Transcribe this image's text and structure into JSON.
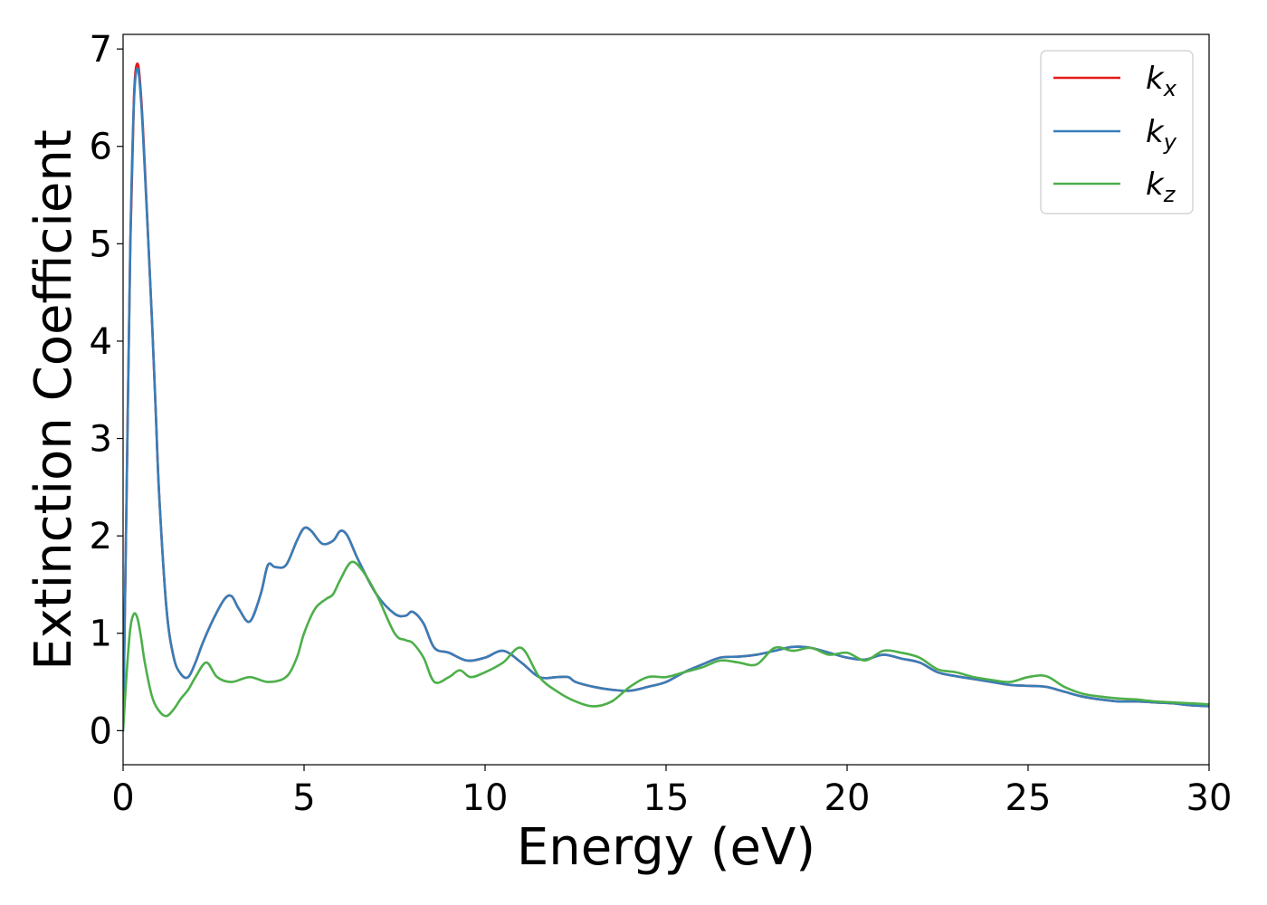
{
  "chart_data": {
    "type": "line",
    "xlabel": "Energy (eV)",
    "ylabel": "Extinction Coefficient",
    "xlim": [
      0,
      30
    ],
    "ylim": [
      -0.35,
      7.15
    ],
    "xticks": [
      0,
      5,
      10,
      15,
      20,
      25,
      30
    ],
    "xtick_labels": [
      "0",
      "5",
      "10",
      "15",
      "20",
      "25",
      "30"
    ],
    "yticks": [
      0,
      1,
      2,
      3,
      4,
      5,
      6,
      7
    ],
    "ytick_labels": [
      "0",
      "1",
      "2",
      "3",
      "4",
      "5",
      "6",
      "7"
    ],
    "grid": false,
    "legend_position": "top-right",
    "series": [
      {
        "name": "k",
        "subscript": "x",
        "color": "#e41a1c",
        "x": [
          0,
          0.1,
          0.2,
          0.3,
          0.4,
          0.5,
          0.6,
          0.7,
          0.8,
          0.9,
          1.0,
          1.2,
          1.4,
          1.6,
          1.8,
          2.0,
          2.2,
          2.5,
          2.8,
          3.0,
          3.2,
          3.5,
          3.8,
          4.0,
          4.2,
          4.5,
          4.8,
          5.0,
          5.2,
          5.5,
          5.8,
          6.0,
          6.2,
          6.5,
          7.0,
          7.5,
          7.8,
          8.0,
          8.3,
          8.6,
          9.0,
          9.5,
          10.0,
          10.5,
          11.0,
          11.5,
          12.0,
          12.3,
          12.5,
          13.0,
          13.5,
          14.0,
          14.5,
          15.0,
          15.5,
          16.0,
          16.5,
          17.0,
          17.5,
          18.0,
          18.5,
          19.0,
          19.5,
          20.0,
          20.5,
          21.0,
          21.5,
          22.0,
          22.5,
          23.0,
          23.5,
          24.0,
          24.5,
          25.0,
          25.5,
          26.0,
          26.5,
          27.0,
          27.5,
          28.0,
          28.5,
          29.0,
          29.5,
          30.0
        ],
        "values": [
          0.0,
          2.5,
          5.0,
          6.5,
          6.85,
          6.5,
          5.8,
          5.0,
          4.2,
          3.3,
          2.4,
          1.25,
          0.75,
          0.58,
          0.55,
          0.7,
          0.9,
          1.15,
          1.35,
          1.38,
          1.25,
          1.12,
          1.4,
          1.7,
          1.68,
          1.7,
          1.95,
          2.08,
          2.05,
          1.92,
          1.95,
          2.05,
          2.0,
          1.75,
          1.4,
          1.2,
          1.18,
          1.22,
          1.1,
          0.85,
          0.8,
          0.72,
          0.75,
          0.82,
          0.7,
          0.55,
          0.55,
          0.55,
          0.5,
          0.45,
          0.42,
          0.41,
          0.45,
          0.5,
          0.6,
          0.68,
          0.75,
          0.76,
          0.78,
          0.82,
          0.86,
          0.85,
          0.8,
          0.75,
          0.73,
          0.78,
          0.74,
          0.7,
          0.6,
          0.56,
          0.53,
          0.5,
          0.47,
          0.46,
          0.45,
          0.4,
          0.35,
          0.32,
          0.3,
          0.3,
          0.29,
          0.28,
          0.26,
          0.25
        ]
      },
      {
        "name": "k",
        "subscript": "y",
        "color": "#377eb8",
        "x": [
          0,
          0.1,
          0.2,
          0.3,
          0.4,
          0.5,
          0.6,
          0.7,
          0.8,
          0.9,
          1.0,
          1.2,
          1.4,
          1.6,
          1.8,
          2.0,
          2.2,
          2.5,
          2.8,
          3.0,
          3.2,
          3.5,
          3.8,
          4.0,
          4.2,
          4.5,
          4.8,
          5.0,
          5.2,
          5.5,
          5.8,
          6.0,
          6.2,
          6.5,
          7.0,
          7.5,
          7.8,
          8.0,
          8.3,
          8.6,
          9.0,
          9.5,
          10.0,
          10.5,
          11.0,
          11.5,
          12.0,
          12.3,
          12.5,
          13.0,
          13.5,
          14.0,
          14.5,
          15.0,
          15.5,
          16.0,
          16.5,
          17.0,
          17.5,
          18.0,
          18.5,
          19.0,
          19.5,
          20.0,
          20.5,
          21.0,
          21.5,
          22.0,
          22.5,
          23.0,
          23.5,
          24.0,
          24.5,
          25.0,
          25.5,
          26.0,
          26.5,
          27.0,
          27.5,
          28.0,
          28.5,
          29.0,
          29.5,
          30.0
        ],
        "values": [
          0.0,
          2.5,
          5.0,
          6.45,
          6.8,
          6.45,
          5.75,
          5.0,
          4.2,
          3.3,
          2.4,
          1.25,
          0.75,
          0.58,
          0.55,
          0.7,
          0.9,
          1.15,
          1.35,
          1.38,
          1.25,
          1.12,
          1.4,
          1.7,
          1.68,
          1.7,
          1.95,
          2.08,
          2.05,
          1.92,
          1.95,
          2.05,
          2.0,
          1.75,
          1.4,
          1.2,
          1.18,
          1.22,
          1.1,
          0.85,
          0.8,
          0.72,
          0.75,
          0.82,
          0.7,
          0.55,
          0.55,
          0.55,
          0.5,
          0.45,
          0.42,
          0.41,
          0.45,
          0.5,
          0.6,
          0.68,
          0.75,
          0.76,
          0.78,
          0.82,
          0.86,
          0.85,
          0.8,
          0.75,
          0.73,
          0.78,
          0.74,
          0.7,
          0.6,
          0.56,
          0.53,
          0.5,
          0.47,
          0.46,
          0.45,
          0.4,
          0.35,
          0.32,
          0.3,
          0.3,
          0.29,
          0.28,
          0.26,
          0.25
        ]
      },
      {
        "name": "k",
        "subscript": "z",
        "color": "#4daf4a",
        "x": [
          0,
          0.1,
          0.2,
          0.3,
          0.4,
          0.5,
          0.6,
          0.8,
          1.0,
          1.2,
          1.4,
          1.6,
          1.8,
          2.0,
          2.3,
          2.6,
          3.0,
          3.5,
          4.0,
          4.5,
          4.8,
          5.0,
          5.3,
          5.6,
          5.8,
          6.0,
          6.3,
          6.6,
          7.0,
          7.5,
          7.8,
          8.0,
          8.3,
          8.6,
          9.0,
          9.3,
          9.6,
          10.0,
          10.5,
          11.0,
          11.5,
          12.0,
          12.5,
          13.0,
          13.5,
          14.0,
          14.5,
          15.0,
          15.5,
          16.0,
          16.5,
          17.0,
          17.5,
          18.0,
          18.5,
          19.0,
          19.5,
          20.0,
          20.5,
          21.0,
          21.5,
          22.0,
          22.5,
          23.0,
          23.5,
          24.0,
          24.5,
          25.0,
          25.5,
          26.0,
          26.5,
          27.0,
          27.5,
          28.0,
          28.5,
          29.0,
          29.5,
          30.0
        ],
        "values": [
          0.0,
          0.6,
          1.05,
          1.2,
          1.15,
          0.95,
          0.7,
          0.35,
          0.2,
          0.15,
          0.22,
          0.33,
          0.42,
          0.55,
          0.7,
          0.55,
          0.5,
          0.55,
          0.5,
          0.55,
          0.75,
          1.0,
          1.25,
          1.35,
          1.4,
          1.55,
          1.73,
          1.65,
          1.4,
          1.0,
          0.93,
          0.9,
          0.75,
          0.5,
          0.55,
          0.62,
          0.55,
          0.6,
          0.7,
          0.85,
          0.55,
          0.4,
          0.3,
          0.25,
          0.3,
          0.45,
          0.55,
          0.55,
          0.6,
          0.65,
          0.72,
          0.7,
          0.68,
          0.85,
          0.82,
          0.85,
          0.78,
          0.8,
          0.72,
          0.82,
          0.8,
          0.75,
          0.63,
          0.6,
          0.55,
          0.52,
          0.5,
          0.55,
          0.56,
          0.45,
          0.38,
          0.35,
          0.33,
          0.32,
          0.3,
          0.29,
          0.28,
          0.27
        ]
      }
    ]
  }
}
